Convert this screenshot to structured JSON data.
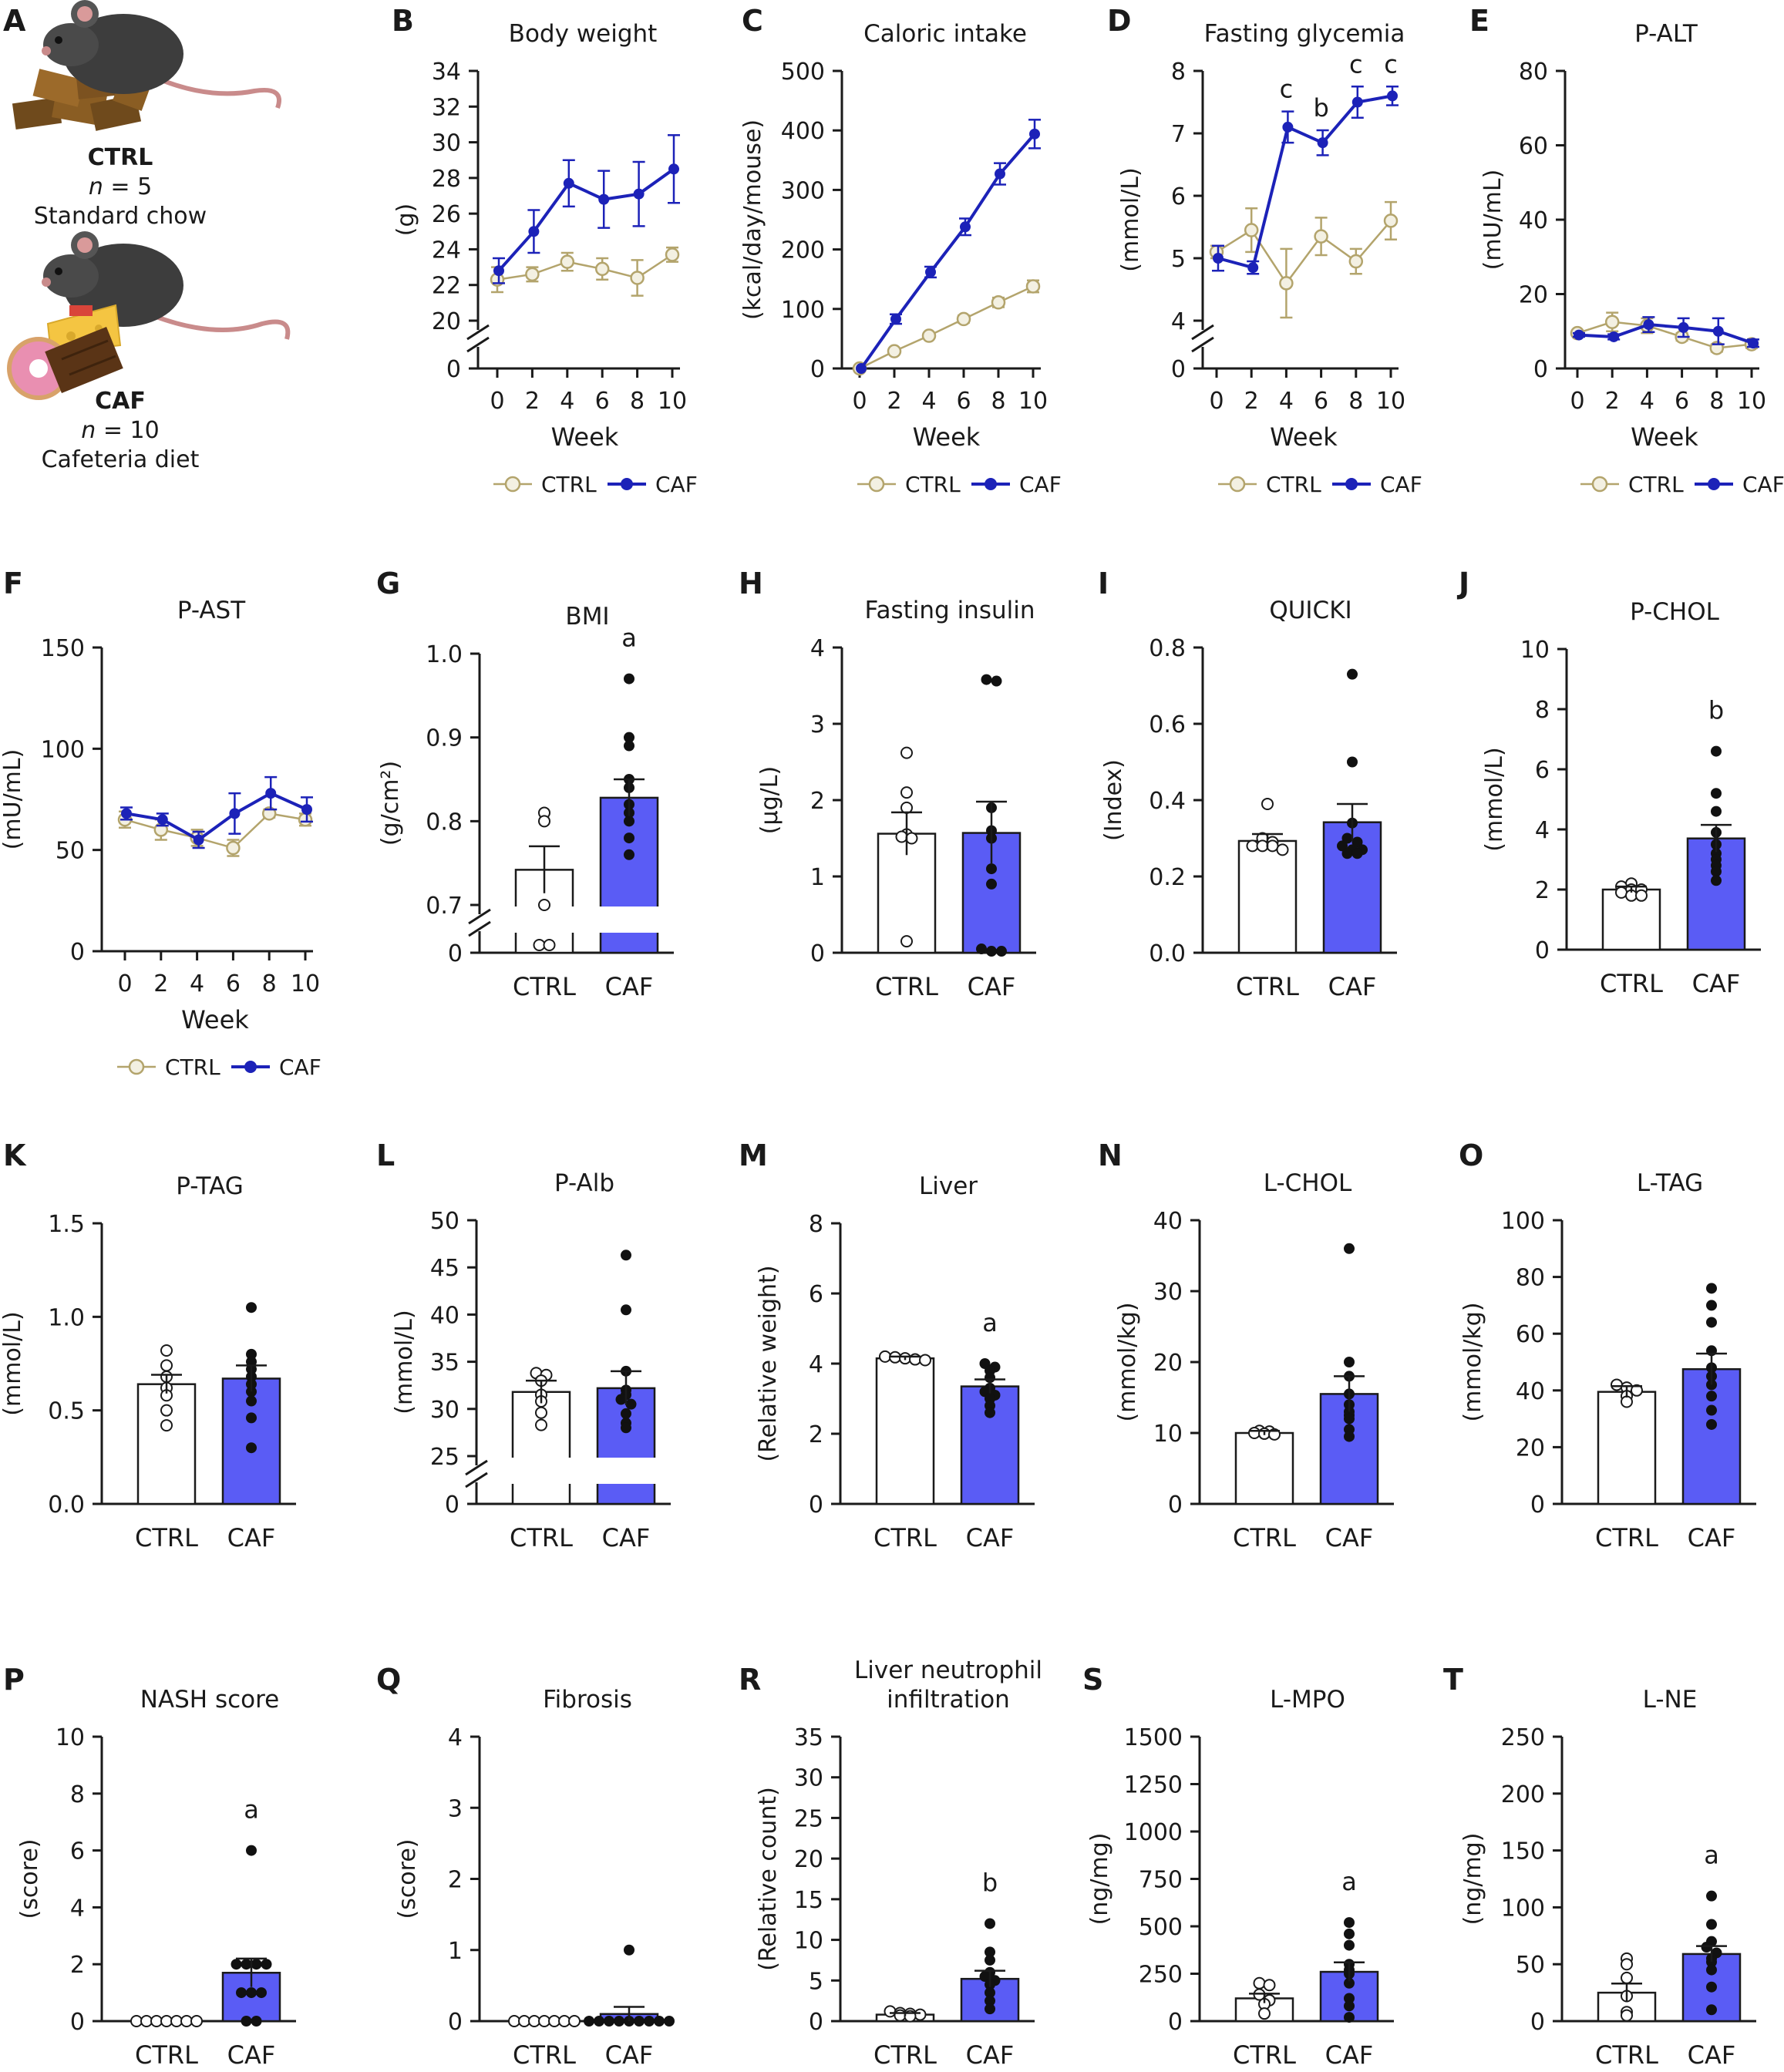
{
  "colors": {
    "ctrl": "#b3a46c",
    "caf_line": "#1c22b8",
    "caf_bar": "#5a5cf5",
    "axis": "#1a1a1a"
  },
  "intro": {
    "letter": "A",
    "ctrl_group": {
      "name": "CTRL",
      "n_label": "n",
      "n_value": "= 5",
      "diet": "Standard chow"
    },
    "caf_group": {
      "name": "CAF",
      "n_label": "n",
      "n_value": "= 10",
      "diet": "Cafeteria diet"
    }
  },
  "chart_data": [
    {
      "letter": "B",
      "type": "line",
      "title": "Body weight",
      "ylabel": "(g)",
      "xlabel": "Week",
      "x": [
        0,
        2,
        4,
        6,
        8,
        10
      ],
      "yticks": [
        20,
        22,
        24,
        26,
        28,
        30,
        32,
        34
      ],
      "ybreak": true,
      "legend": [
        "CTRL",
        "CAF"
      ],
      "series": [
        {
          "name": "CTRL",
          "values": [
            22.3,
            22.6,
            23.3,
            22.9,
            22.4,
            23.7
          ],
          "err": [
            0.7,
            0.4,
            0.5,
            0.6,
            1.0,
            0.4
          ]
        },
        {
          "name": "CAF",
          "values": [
            22.8,
            25.0,
            27.7,
            26.8,
            27.1,
            28.5
          ],
          "err": [
            0.7,
            1.2,
            1.3,
            1.6,
            1.8,
            1.9
          ]
        }
      ],
      "annotations": []
    },
    {
      "letter": "C",
      "type": "line",
      "title": "Caloric intake",
      "ylabel": "(kcal/day/mouse)",
      "xlabel": "Week",
      "x": [
        0,
        2,
        4,
        6,
        8,
        10
      ],
      "yticks": [
        0,
        100,
        200,
        300,
        400,
        500
      ],
      "legend": [
        "CTRL",
        "CAF"
      ],
      "series": [
        {
          "name": "CTRL",
          "values": [
            0,
            29,
            55,
            83,
            111,
            138
          ],
          "err": [
            0,
            3,
            4,
            6,
            8,
            10
          ]
        },
        {
          "name": "CAF",
          "values": [
            0,
            83,
            162,
            238,
            327,
            394
          ],
          "err": [
            0,
            8,
            9,
            14,
            18,
            24
          ]
        }
      ],
      "annotations": []
    },
    {
      "letter": "D",
      "type": "line",
      "title": "Fasting glycemia",
      "ylabel": "(mmol/L)",
      "xlabel": "Week",
      "x": [
        0,
        2,
        4,
        6,
        8,
        10
      ],
      "yticks": [
        4,
        5,
        6,
        7,
        8
      ],
      "ybreak": true,
      "legend": [
        "CTRL",
        "CAF"
      ],
      "series": [
        {
          "name": "CTRL",
          "values": [
            5.1,
            5.45,
            4.6,
            5.35,
            4.95,
            5.6
          ],
          "err": [
            0.1,
            0.35,
            0.55,
            0.3,
            0.2,
            0.3
          ]
        },
        {
          "name": "CAF",
          "values": [
            5.0,
            4.85,
            7.1,
            6.85,
            7.5,
            7.6
          ],
          "err": [
            0.2,
            0.1,
            0.25,
            0.2,
            0.25,
            0.15
          ]
        }
      ],
      "annotations": [
        {
          "x": 4,
          "text": "c"
        },
        {
          "x": 6,
          "text": "b"
        },
        {
          "x": 8,
          "text": "c"
        },
        {
          "x": 10,
          "text": "c"
        }
      ]
    },
    {
      "letter": "E",
      "type": "line",
      "title": "P-ALT",
      "ylabel": "(mU/mL)",
      "xlabel": "Week",
      "x": [
        0,
        2,
        4,
        6,
        8,
        10
      ],
      "yticks": [
        0,
        20,
        40,
        60,
        80
      ],
      "legend": [
        "CTRL",
        "CAF"
      ],
      "series": [
        {
          "name": "CTRL",
          "values": [
            9.5,
            12.5,
            11.5,
            8.5,
            5.5,
            6.5
          ],
          "err": [
            0.5,
            2.5,
            2.0,
            1.0,
            1.0,
            1.0
          ]
        },
        {
          "name": "CAF",
          "values": [
            9.0,
            8.5,
            11.8,
            11.0,
            10.0,
            6.8
          ],
          "err": [
            0.5,
            0.7,
            2.0,
            2.5,
            3.5,
            1.0
          ]
        }
      ],
      "annotations": []
    },
    {
      "letter": "F",
      "type": "line",
      "title": "P-AST",
      "ylabel": "(mU/mL)",
      "xlabel": "Week",
      "x": [
        0,
        2,
        4,
        6,
        8,
        10
      ],
      "yticks": [
        0,
        50,
        100,
        150
      ],
      "legend": [
        "CTRL",
        "CAF"
      ],
      "series": [
        {
          "name": "CTRL",
          "values": [
            65,
            60,
            56,
            51,
            68,
            65
          ],
          "err": [
            4,
            5,
            4,
            4,
            2,
            3
          ]
        },
        {
          "name": "CAF",
          "values": [
            68,
            65,
            55,
            68,
            78,
            70
          ],
          "err": [
            3,
            3,
            4,
            10,
            8,
            6
          ]
        }
      ],
      "annotations": []
    },
    {
      "letter": "G",
      "type": "bar",
      "title": "BMI",
      "ylabel": "(g/cm²)",
      "categories": [
        "CTRL",
        "CAF"
      ],
      "yticks": [
        0.7,
        0.8,
        0.9,
        1.0
      ],
      "ybreak": true,
      "values": [
        0.742,
        0.828
      ],
      "err": [
        0.028,
        0.022
      ],
      "points": [
        [
          0.81,
          0.8,
          0.7,
          0.68,
          0.68
        ],
        [
          0.97,
          0.9,
          0.89,
          0.85,
          0.84,
          0.82,
          0.81,
          0.8,
          0.78,
          0.76
        ]
      ],
      "annotations": [
        "",
        "a"
      ]
    },
    {
      "letter": "H",
      "type": "bar",
      "title": "Fasting insulin",
      "ylabel": "(µg/L)",
      "categories": [
        "CTRL",
        "CAF"
      ],
      "yticks": [
        0,
        1,
        2,
        3,
        4
      ],
      "values": [
        1.56,
        1.57
      ],
      "err": [
        0.28,
        0.41
      ],
      "points": [
        [
          2.62,
          2.1,
          1.9,
          1.55,
          1.52,
          1.5,
          0.15
        ],
        [
          3.58,
          3.56,
          1.9,
          1.6,
          1.5,
          1.1,
          0.9,
          0.05,
          0.02,
          0.02
        ]
      ],
      "annotations": [
        "",
        ""
      ]
    },
    {
      "letter": "I",
      "type": "bar",
      "title": "QUICKI",
      "ylabel": "(Index)",
      "categories": [
        "CTRL",
        "CAF"
      ],
      "yticks": [
        0.0,
        0.2,
        0.4,
        0.6,
        0.8
      ],
      "values": [
        0.293,
        0.342
      ],
      "err": [
        0.018,
        0.048
      ],
      "points": [
        [
          0.39,
          0.3,
          0.29,
          0.28,
          0.28,
          0.28,
          0.27
        ],
        [
          0.73,
          0.5,
          0.34,
          0.3,
          0.29,
          0.28,
          0.27,
          0.27,
          0.26,
          0.26
        ]
      ],
      "annotations": [
        "",
        ""
      ]
    },
    {
      "letter": "J",
      "type": "bar",
      "title": "P-CHOL",
      "ylabel": "(mmol/L)",
      "categories": [
        "CTRL",
        "CAF"
      ],
      "yticks": [
        0,
        2,
        4,
        6,
        8,
        10
      ],
      "values": [
        2.0,
        3.7
      ],
      "err": [
        0.1,
        0.45
      ],
      "points": [
        [
          2.2,
          2.1,
          2.0,
          2.0,
          1.9,
          1.8,
          1.8
        ],
        [
          6.6,
          5.2,
          4.6,
          3.9,
          3.5,
          3.2,
          3.0,
          2.8,
          2.6,
          2.3
        ]
      ],
      "annotations": [
        "",
        "b"
      ]
    },
    {
      "letter": "K",
      "type": "bar",
      "title": "P-TAG",
      "ylabel": "(mmol/L)",
      "categories": [
        "CTRL",
        "CAF"
      ],
      "yticks": [
        0.0,
        0.5,
        1.0,
        1.5
      ],
      "values": [
        0.64,
        0.67
      ],
      "err": [
        0.05,
        0.07
      ],
      "points": [
        [
          0.82,
          0.74,
          0.68,
          0.62,
          0.58,
          0.5,
          0.42
        ],
        [
          1.05,
          0.8,
          0.76,
          0.72,
          0.68,
          0.64,
          0.6,
          0.55,
          0.46,
          0.3
        ]
      ],
      "annotations": [
        "",
        ""
      ]
    },
    {
      "letter": "L",
      "type": "bar",
      "title": "P-Alb",
      "ylabel": "(mmol/L)",
      "categories": [
        "CTRL",
        "CAF"
      ],
      "yticks": [
        25,
        30,
        35,
        40,
        45,
        50
      ],
      "ybreak": true,
      "values": [
        31.8,
        32.2
      ],
      "err": [
        1.2,
        1.8
      ],
      "points": [
        [
          33.8,
          33.6,
          33.0,
          31.5,
          30.8,
          29.6,
          28.3
        ],
        [
          46.3,
          40.5,
          34.0,
          32.0,
          31.5,
          31.0,
          30.5,
          29.5,
          28.5,
          28.0
        ]
      ],
      "annotations": [
        "",
        ""
      ]
    },
    {
      "letter": "M",
      "type": "bar",
      "title": "Liver",
      "ylabel": "(Relative weight)",
      "categories": [
        "CTRL",
        "CAF"
      ],
      "yticks": [
        0,
        2,
        4,
        6,
        8
      ],
      "values": [
        4.15,
        3.35
      ],
      "err": [
        0.05,
        0.2
      ],
      "points": [
        [
          4.2,
          4.18,
          4.15,
          4.12,
          4.1
        ],
        [
          4.0,
          3.9,
          3.8,
          3.6,
          3.3,
          3.2,
          3.1,
          3.0,
          2.8,
          2.6
        ]
      ],
      "annotations": [
        "",
        "a"
      ]
    },
    {
      "letter": "N",
      "type": "bar",
      "title": "L-CHOL",
      "ylabel": "(mmol/kg)",
      "categories": [
        "CTRL",
        "CAF"
      ],
      "yticks": [
        0,
        10,
        20,
        30,
        40
      ],
      "values": [
        10.0,
        15.5
      ],
      "err": [
        0.3,
        2.5
      ],
      "points": [
        [
          10.3,
          10.2,
          10.0,
          9.9,
          9.8
        ],
        [
          36.0,
          20.0,
          18.0,
          15.5,
          14.0,
          13.0,
          12.5,
          12.0,
          10.5,
          9.5
        ]
      ],
      "annotations": [
        "",
        ""
      ]
    },
    {
      "letter": "O",
      "type": "bar",
      "title": "L-TAG",
      "ylabel": "(mmol/kg)",
      "categories": [
        "CTRL",
        "CAF"
      ],
      "yticks": [
        0,
        20,
        40,
        60,
        80,
        100
      ],
      "values": [
        39.5,
        47.5
      ],
      "err": [
        2.0,
        5.5
      ],
      "points": [
        [
          42.0,
          41.0,
          40.0,
          38.0,
          36.0
        ],
        [
          76.0,
          70.0,
          64.0,
          54.0,
          48.0,
          45.0,
          42.0,
          38.0,
          33.0,
          28.0
        ]
      ],
      "annotations": [
        "",
        ""
      ]
    },
    {
      "letter": "P",
      "type": "bar",
      "title": "NASH score",
      "ylabel": "(score)",
      "categories": [
        "CTRL",
        "CAF"
      ],
      "yticks": [
        0,
        2,
        4,
        6,
        8,
        10
      ],
      "values": [
        0.0,
        1.7
      ],
      "err": [
        0.0,
        0.5
      ],
      "points": [
        [
          0,
          0,
          0,
          0,
          0,
          0,
          0
        ],
        [
          6,
          2,
          2,
          2,
          2,
          1,
          1,
          1,
          0,
          0
        ]
      ],
      "annotations": [
        "",
        "a"
      ]
    },
    {
      "letter": "Q",
      "type": "bar",
      "title": "Fibrosis",
      "ylabel": "(score)",
      "categories": [
        "CTRL",
        "CAF"
      ],
      "yticks": [
        0,
        1,
        2,
        3,
        4
      ],
      "values": [
        0.0,
        0.1
      ],
      "err": [
        0.0,
        0.1
      ],
      "points": [
        [
          0,
          0,
          0,
          0,
          0,
          0,
          0
        ],
        [
          1,
          0,
          0,
          0,
          0,
          0,
          0,
          0,
          0,
          0
        ]
      ],
      "annotations": [
        "",
        ""
      ]
    },
    {
      "letter": "R",
      "type": "bar",
      "title": "Liver neutrophil infiltration",
      "title_lines": [
        "Liver neutrophil",
        "infiltration"
      ],
      "ylabel": "(Relative count)",
      "categories": [
        "CTRL",
        "CAF"
      ],
      "yticks": [
        0,
        5,
        10,
        15,
        20,
        25,
        30,
        35
      ],
      "values": [
        0.8,
        5.2
      ],
      "err": [
        0.2,
        1.0
      ],
      "points": [
        [
          1.2,
          1.0,
          0.9,
          0.8,
          0.7,
          0.6
        ],
        [
          12.0,
          8.5,
          7.5,
          6.0,
          5.5,
          5.0,
          4.5,
          3.5,
          2.5,
          1.5
        ]
      ],
      "annotations": [
        "",
        "b"
      ]
    },
    {
      "letter": "S",
      "type": "bar",
      "title": "L-MPO",
      "ylabel": "(ng/mg)",
      "categories": [
        "CTRL",
        "CAF"
      ],
      "yticks": [
        0,
        250,
        500,
        750,
        1000,
        1250,
        1500
      ],
      "values": [
        120,
        260
      ],
      "err": [
        25,
        50
      ],
      "points": [
        [
          200,
          190,
          140,
          110,
          90,
          40
        ],
        [
          520,
          460,
          400,
          300,
          270,
          250,
          200,
          120,
          80,
          20
        ]
      ],
      "annotations": [
        "",
        "a"
      ]
    },
    {
      "letter": "T",
      "type": "bar",
      "title": "L-NE",
      "ylabel": "(ng/mg)",
      "categories": [
        "CTRL",
        "CAF"
      ],
      "yticks": [
        0,
        50,
        100,
        150,
        200,
        250
      ],
      "values": [
        25,
        59
      ],
      "err": [
        8,
        7
      ],
      "points": [
        [
          55,
          50,
          38,
          22,
          8,
          5
        ],
        [
          110,
          85,
          70,
          65,
          60,
          55,
          52,
          45,
          30,
          10
        ]
      ],
      "annotations": [
        "",
        "a"
      ]
    }
  ]
}
